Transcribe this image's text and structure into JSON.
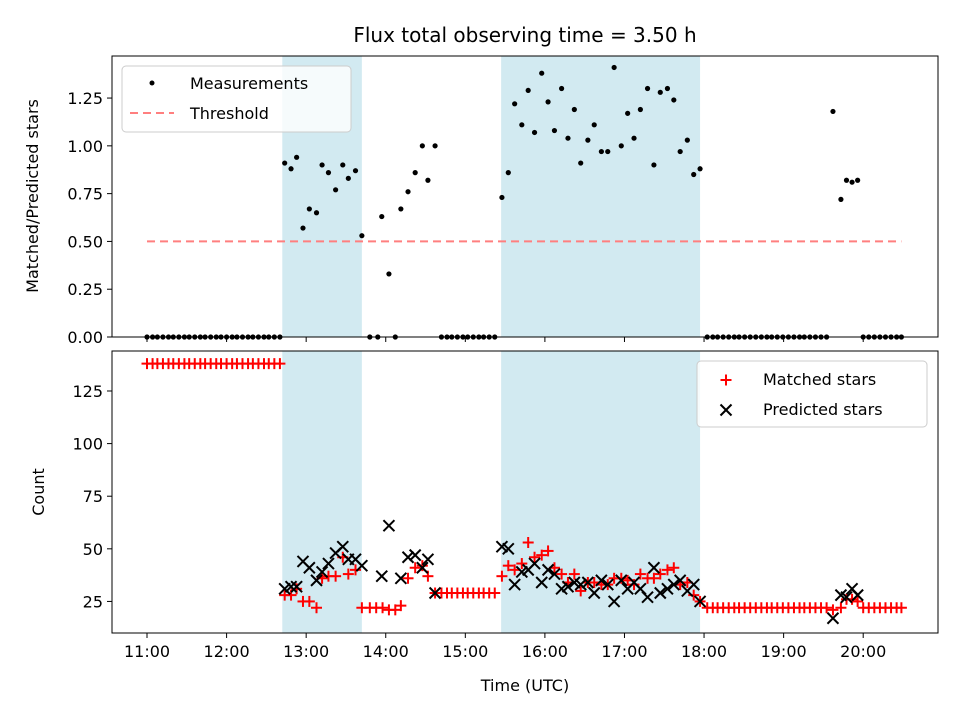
{
  "chart_data": {
    "title": "Flux total observing time = 3.50 h",
    "xlabel": "Time (UTC)",
    "x_range_hours": [
      10.56,
      20.94
    ],
    "x_ticks": [
      {
        "value": 11,
        "label": "11:00"
      },
      {
        "value": 12,
        "label": "12:00"
      },
      {
        "value": 13,
        "label": "13:00"
      },
      {
        "value": 14,
        "label": "14:00"
      },
      {
        "value": 15,
        "label": "15:00"
      },
      {
        "value": 16,
        "label": "16:00"
      },
      {
        "value": 17,
        "label": "17:00"
      },
      {
        "value": 18,
        "label": "18:00"
      },
      {
        "value": 19,
        "label": "19:00"
      },
      {
        "value": 20,
        "label": "20:00"
      }
    ],
    "observing_windows": [
      [
        12.7,
        13.7
      ],
      [
        15.45,
        17.95
      ]
    ],
    "window_color": "#add8e6",
    "top": {
      "type": "scatter",
      "ylabel": "Matched/Predicted stars",
      "ylim": [
        0,
        1.47
      ],
      "y_ticks": [
        0,
        0.25,
        0.5,
        0.75,
        1.0,
        1.25
      ],
      "y_tick_labels": [
        "0.00",
        "0.25",
        "0.50",
        "0.75",
        "1.00",
        "1.25"
      ],
      "threshold": {
        "value": 0.5,
        "x_range": [
          11.0,
          20.48
        ],
        "color": "#ff7f7f"
      },
      "legend": [
        {
          "name": "Measurements",
          "marker": "dot",
          "color": "#000000"
        },
        {
          "name": "Threshold",
          "marker": "dashed-line",
          "color": "#ff7f7f"
        }
      ],
      "measurements": [
        [
          11.0,
          0
        ],
        [
          11.07,
          0
        ],
        [
          11.13,
          0
        ],
        [
          11.2,
          0
        ],
        [
          11.27,
          0
        ],
        [
          11.33,
          0
        ],
        [
          11.4,
          0
        ],
        [
          11.47,
          0
        ],
        [
          11.53,
          0
        ],
        [
          11.6,
          0
        ],
        [
          11.67,
          0
        ],
        [
          11.73,
          0
        ],
        [
          11.8,
          0
        ],
        [
          11.87,
          0
        ],
        [
          11.93,
          0
        ],
        [
          12.0,
          0
        ],
        [
          12.07,
          0
        ],
        [
          12.13,
          0
        ],
        [
          12.2,
          0
        ],
        [
          12.27,
          0
        ],
        [
          12.33,
          0
        ],
        [
          12.4,
          0
        ],
        [
          12.47,
          0
        ],
        [
          12.53,
          0
        ],
        [
          12.6,
          0
        ],
        [
          12.67,
          0
        ],
        [
          12.73,
          0.91
        ],
        [
          12.81,
          0.88
        ],
        [
          12.88,
          0.94
        ],
        [
          12.96,
          0.57
        ],
        [
          13.04,
          0.67
        ],
        [
          13.13,
          0.65
        ],
        [
          13.2,
          0.9
        ],
        [
          13.28,
          0.86
        ],
        [
          13.37,
          0.77
        ],
        [
          13.46,
          0.9
        ],
        [
          13.53,
          0.83
        ],
        [
          13.62,
          0.87
        ],
        [
          13.7,
          0.53
        ],
        [
          13.8,
          0
        ],
        [
          13.9,
          0
        ],
        [
          13.95,
          0.63
        ],
        [
          14.04,
          0.33
        ],
        [
          14.12,
          0
        ],
        [
          14.19,
          0.67
        ],
        [
          14.28,
          0.76
        ],
        [
          14.37,
          0.86
        ],
        [
          14.46,
          1.0
        ],
        [
          14.53,
          0.82
        ],
        [
          14.62,
          1.0
        ],
        [
          14.7,
          0
        ],
        [
          14.77,
          0
        ],
        [
          14.83,
          0
        ],
        [
          14.9,
          0
        ],
        [
          14.97,
          0
        ],
        [
          15.03,
          0
        ],
        [
          15.1,
          0
        ],
        [
          15.17,
          0
        ],
        [
          15.23,
          0
        ],
        [
          15.3,
          0
        ],
        [
          15.37,
          0
        ],
        [
          15.46,
          0.73
        ],
        [
          15.54,
          0.86
        ],
        [
          15.62,
          1.22
        ],
        [
          15.71,
          1.11
        ],
        [
          15.79,
          1.29
        ],
        [
          15.87,
          1.07
        ],
        [
          15.96,
          1.38
        ],
        [
          16.04,
          1.23
        ],
        [
          16.12,
          1.08
        ],
        [
          16.21,
          1.3
        ],
        [
          16.29,
          1.04
        ],
        [
          16.37,
          1.19
        ],
        [
          16.45,
          0.91
        ],
        [
          16.54,
          1.03
        ],
        [
          16.62,
          1.11
        ],
        [
          16.71,
          0.97
        ],
        [
          16.79,
          0.97
        ],
        [
          16.87,
          1.41
        ],
        [
          16.96,
          1.0
        ],
        [
          17.04,
          1.17
        ],
        [
          17.12,
          1.04
        ],
        [
          17.2,
          1.19
        ],
        [
          17.29,
          1.3
        ],
        [
          17.37,
          0.9
        ],
        [
          17.45,
          1.28
        ],
        [
          17.54,
          1.3
        ],
        [
          17.62,
          1.24
        ],
        [
          17.7,
          0.97
        ],
        [
          17.79,
          1.03
        ],
        [
          17.87,
          0.85
        ],
        [
          17.95,
          0.88
        ],
        [
          18.04,
          0
        ],
        [
          18.11,
          0
        ],
        [
          18.17,
          0
        ],
        [
          18.24,
          0
        ],
        [
          18.31,
          0
        ],
        [
          18.38,
          0
        ],
        [
          18.44,
          0
        ],
        [
          18.51,
          0
        ],
        [
          18.58,
          0
        ],
        [
          18.65,
          0
        ],
        [
          18.72,
          0
        ],
        [
          18.79,
          0
        ],
        [
          18.85,
          0
        ],
        [
          18.92,
          0
        ],
        [
          18.99,
          0
        ],
        [
          19.06,
          0
        ],
        [
          19.13,
          0
        ],
        [
          19.2,
          0
        ],
        [
          19.26,
          0
        ],
        [
          19.33,
          0
        ],
        [
          19.4,
          0
        ],
        [
          19.47,
          0
        ],
        [
          19.54,
          0
        ],
        [
          19.62,
          1.18
        ],
        [
          19.72,
          0.72
        ],
        [
          19.79,
          0.82
        ],
        [
          19.86,
          0.81
        ],
        [
          19.93,
          0.82
        ],
        [
          20.0,
          0
        ],
        [
          20.07,
          0
        ],
        [
          20.14,
          0
        ],
        [
          20.21,
          0
        ],
        [
          20.28,
          0
        ],
        [
          20.35,
          0
        ],
        [
          20.42,
          0
        ],
        [
          20.48,
          0
        ]
      ]
    },
    "bottom": {
      "type": "scatter",
      "ylabel": "Count",
      "ylim": [
        10,
        144
      ],
      "y_ticks": [
        25,
        50,
        75,
        100,
        125
      ],
      "y_tick_labels": [
        "25",
        "50",
        "75",
        "100",
        "125"
      ],
      "legend": [
        {
          "name": "Matched stars",
          "marker": "plus",
          "color": "#ff0000"
        },
        {
          "name": "Predicted stars",
          "marker": "x",
          "color": "#000000"
        }
      ],
      "matched_stars": [
        [
          11.0,
          138
        ],
        [
          11.07,
          138
        ],
        [
          11.13,
          138
        ],
        [
          11.2,
          138
        ],
        [
          11.27,
          138
        ],
        [
          11.33,
          138
        ],
        [
          11.4,
          138
        ],
        [
          11.47,
          138
        ],
        [
          11.53,
          138
        ],
        [
          11.6,
          138
        ],
        [
          11.67,
          138
        ],
        [
          11.73,
          138
        ],
        [
          11.8,
          138
        ],
        [
          11.87,
          138
        ],
        [
          11.93,
          138
        ],
        [
          12.0,
          138
        ],
        [
          12.07,
          138
        ],
        [
          12.13,
          138
        ],
        [
          12.2,
          138
        ],
        [
          12.27,
          138
        ],
        [
          12.33,
          138
        ],
        [
          12.4,
          138
        ],
        [
          12.47,
          138
        ],
        [
          12.53,
          138
        ],
        [
          12.6,
          138
        ],
        [
          12.67,
          138
        ],
        [
          12.73,
          28
        ],
        [
          12.81,
          28
        ],
        [
          12.88,
          31
        ],
        [
          12.96,
          25
        ],
        [
          13.04,
          25
        ],
        [
          13.13,
          22
        ],
        [
          13.2,
          36
        ],
        [
          13.28,
          37
        ],
        [
          13.37,
          37
        ],
        [
          13.46,
          46
        ],
        [
          13.53,
          38
        ],
        [
          13.62,
          40
        ],
        [
          13.7,
          22
        ],
        [
          13.8,
          22
        ],
        [
          13.88,
          22
        ],
        [
          13.96,
          22
        ],
        [
          14.04,
          21
        ],
        [
          14.12,
          21
        ],
        [
          14.19,
          23
        ],
        [
          14.28,
          36
        ],
        [
          14.37,
          41
        ],
        [
          14.46,
          42
        ],
        [
          14.53,
          37
        ],
        [
          14.62,
          29
        ],
        [
          14.7,
          29
        ],
        [
          14.77,
          29
        ],
        [
          14.83,
          29
        ],
        [
          14.9,
          29
        ],
        [
          14.97,
          29
        ],
        [
          15.03,
          29
        ],
        [
          15.1,
          29
        ],
        [
          15.17,
          29
        ],
        [
          15.23,
          29
        ],
        [
          15.3,
          29
        ],
        [
          15.37,
          29
        ],
        [
          15.46,
          37
        ],
        [
          15.54,
          42
        ],
        [
          15.62,
          40
        ],
        [
          15.71,
          43
        ],
        [
          15.79,
          53
        ],
        [
          15.87,
          46
        ],
        [
          15.96,
          47
        ],
        [
          16.04,
          49
        ],
        [
          16.12,
          41
        ],
        [
          16.21,
          38
        ],
        [
          16.29,
          34
        ],
        [
          16.37,
          38
        ],
        [
          16.45,
          30
        ],
        [
          16.54,
          34
        ],
        [
          16.62,
          34
        ],
        [
          16.71,
          33
        ],
        [
          16.79,
          33
        ],
        [
          16.87,
          36
        ],
        [
          16.96,
          36
        ],
        [
          17.04,
          35
        ],
        [
          17.12,
          33
        ],
        [
          17.2,
          38
        ],
        [
          17.29,
          36
        ],
        [
          17.37,
          36
        ],
        [
          17.45,
          38
        ],
        [
          17.54,
          40
        ],
        [
          17.62,
          41
        ],
        [
          17.7,
          33
        ],
        [
          17.79,
          34
        ],
        [
          17.87,
          28
        ],
        [
          17.95,
          25
        ],
        [
          18.04,
          22
        ],
        [
          18.11,
          22
        ],
        [
          18.17,
          22
        ],
        [
          18.24,
          22
        ],
        [
          18.31,
          22
        ],
        [
          18.38,
          22
        ],
        [
          18.44,
          22
        ],
        [
          18.51,
          22
        ],
        [
          18.58,
          22
        ],
        [
          18.65,
          22
        ],
        [
          18.72,
          22
        ],
        [
          18.79,
          22
        ],
        [
          18.85,
          22
        ],
        [
          18.92,
          22
        ],
        [
          18.99,
          22
        ],
        [
          19.06,
          22
        ],
        [
          19.13,
          22
        ],
        [
          19.2,
          22
        ],
        [
          19.26,
          22
        ],
        [
          19.33,
          22
        ],
        [
          19.4,
          22
        ],
        [
          19.47,
          22
        ],
        [
          19.54,
          22
        ],
        [
          19.62,
          21
        ],
        [
          19.72,
          22
        ],
        [
          19.79,
          26
        ],
        [
          19.86,
          26
        ],
        [
          19.93,
          25
        ],
        [
          20.0,
          22
        ],
        [
          20.07,
          22
        ],
        [
          20.14,
          22
        ],
        [
          20.21,
          22
        ],
        [
          20.28,
          22
        ],
        [
          20.35,
          22
        ],
        [
          20.42,
          22
        ],
        [
          20.48,
          22
        ]
      ],
      "predicted_stars": [
        [
          12.73,
          31
        ],
        [
          12.81,
          32
        ],
        [
          12.88,
          32
        ],
        [
          12.96,
          44
        ],
        [
          13.04,
          41
        ],
        [
          13.13,
          35
        ],
        [
          13.2,
          39
        ],
        [
          13.28,
          43
        ],
        [
          13.37,
          48
        ],
        [
          13.46,
          51
        ],
        [
          13.53,
          45
        ],
        [
          13.62,
          45
        ],
        [
          13.7,
          42
        ],
        [
          13.95,
          37
        ],
        [
          14.04,
          61
        ],
        [
          14.19,
          36
        ],
        [
          14.28,
          46
        ],
        [
          14.37,
          47
        ],
        [
          14.46,
          41
        ],
        [
          14.53,
          45
        ],
        [
          14.62,
          29
        ],
        [
          15.46,
          51
        ],
        [
          15.54,
          50
        ],
        [
          15.62,
          33
        ],
        [
          15.71,
          39
        ],
        [
          15.79,
          40
        ],
        [
          15.87,
          43
        ],
        [
          15.96,
          34
        ],
        [
          16.04,
          40
        ],
        [
          16.12,
          38
        ],
        [
          16.21,
          31
        ],
        [
          16.29,
          32
        ],
        [
          16.37,
          34
        ],
        [
          16.45,
          33
        ],
        [
          16.54,
          34
        ],
        [
          16.62,
          29
        ],
        [
          16.71,
          35
        ],
        [
          16.79,
          33
        ],
        [
          16.87,
          25
        ],
        [
          16.96,
          35
        ],
        [
          17.04,
          31
        ],
        [
          17.12,
          34
        ],
        [
          17.2,
          31
        ],
        [
          17.29,
          27
        ],
        [
          17.37,
          41
        ],
        [
          17.45,
          29
        ],
        [
          17.54,
          31
        ],
        [
          17.62,
          33
        ],
        [
          17.7,
          35
        ],
        [
          17.79,
          30
        ],
        [
          17.87,
          33
        ],
        [
          17.95,
          25
        ],
        [
          19.62,
          17
        ],
        [
          19.72,
          28
        ],
        [
          19.79,
          27
        ],
        [
          19.86,
          31
        ],
        [
          19.93,
          28
        ]
      ]
    }
  }
}
